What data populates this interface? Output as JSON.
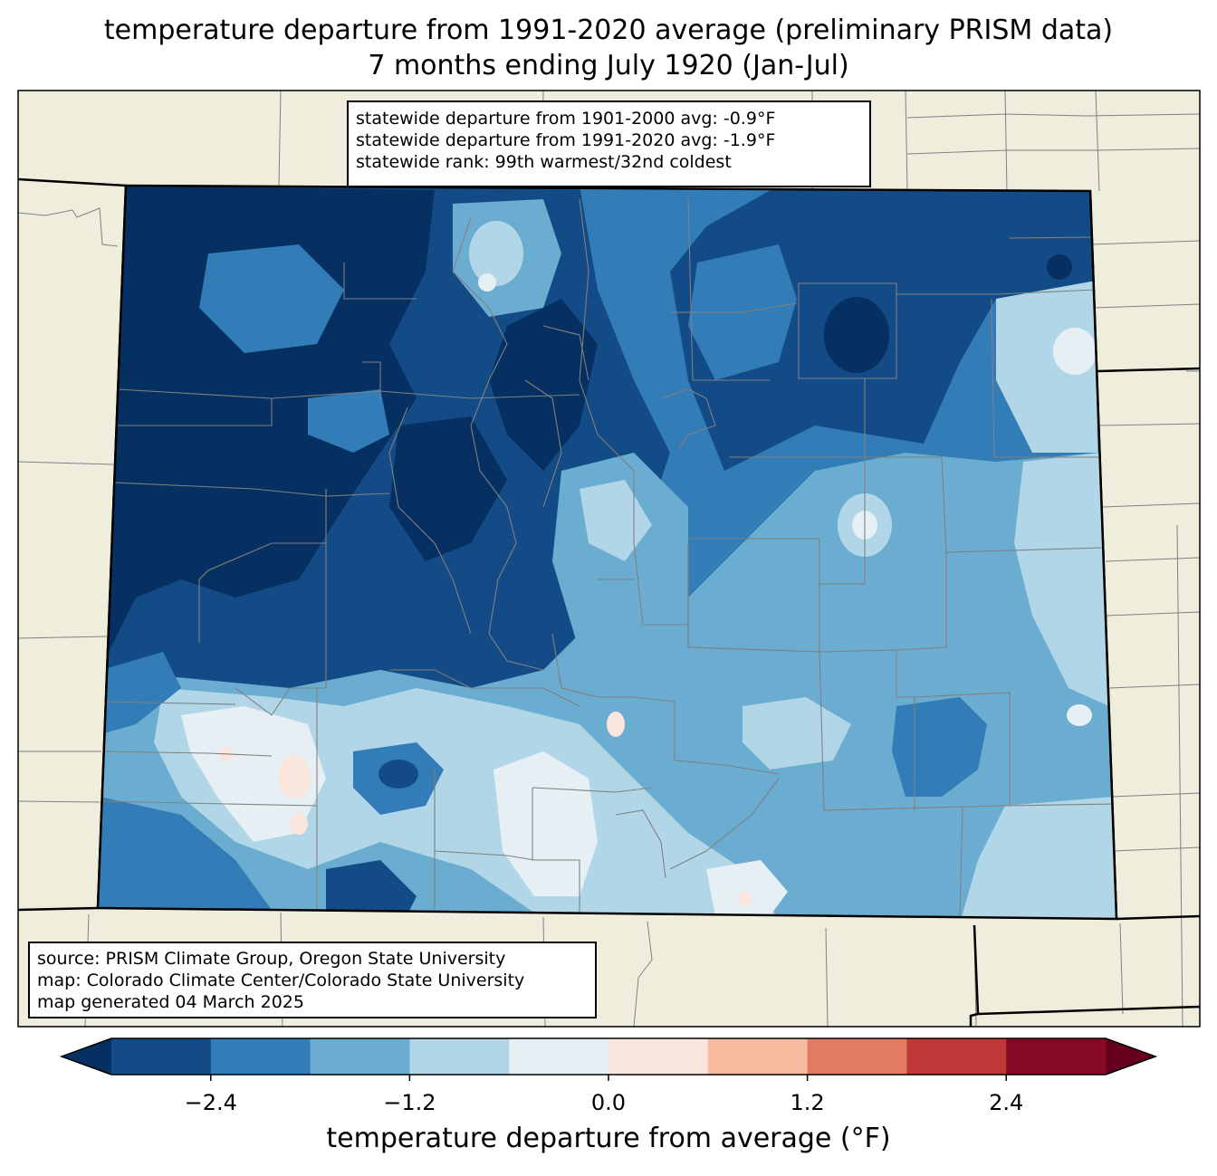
{
  "title": {
    "line1": "temperature departure from 1991-2020 average (preliminary PRISM data)",
    "line2": "7 months ending July 1920 (Jan-Jul)"
  },
  "stats": {
    "line1": "statewide departure from 1901-2000 avg: -0.9°F",
    "line2": "statewide departure from 1991-2020 avg: -1.9°F",
    "line3": "statewide rank: 99th warmest/32nd coldest"
  },
  "source": {
    "line1": "source: PRISM Climate Group, Oregon State University",
    "line2": "map: Colorado Climate Center/Colorado State University",
    "line3": "map generated 04 March 2025"
  },
  "colorbar": {
    "label": "temperature departure from average (°F)",
    "ticks": [
      "−2.4",
      "−1.2",
      "0.0",
      "1.2",
      "2.4"
    ],
    "tick_values": [
      -2.4,
      -1.2,
      0.0,
      1.2,
      2.4
    ],
    "range": [
      -3.0,
      3.0
    ],
    "colors": [
      "#053061",
      "#134b87",
      "#327cb7",
      "#6bacd1",
      "#b1d6e8",
      "#e6eff4",
      "#fae6dd",
      "#f8bba0",
      "#e17c62",
      "#c13839",
      "#860a25",
      "#67001f"
    ]
  },
  "colors": {
    "land": "#efeedc",
    "state_border": "#000000",
    "county_border": "#808080"
  }
}
